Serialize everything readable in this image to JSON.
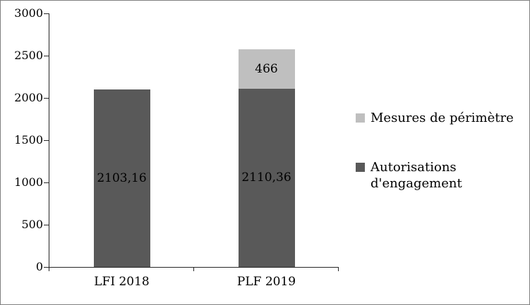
{
  "chart_data": {
    "type": "bar",
    "subtype": "stacked",
    "title": "",
    "xlabel": "",
    "ylabel": "",
    "categories": [
      "LFI 2018",
      "PLF 2019"
    ],
    "series": [
      {
        "name": "Autorisations d'engagement",
        "color": "#595959",
        "values": [
          2103.16,
          2110.36
        ],
        "labels": [
          "2103,16",
          "2110,36"
        ]
      },
      {
        "name": "Mesures de périmètre",
        "color": "#bfbfbf",
        "values": [
          0,
          466
        ],
        "labels": [
          "",
          "466"
        ]
      }
    ],
    "ylim": [
      0,
      3000
    ],
    "yticks": [
      0,
      500,
      1000,
      1500,
      2000,
      2500,
      3000
    ],
    "grid": false,
    "legend_position": "right",
    "legend": [
      {
        "label": "Mesures de périmètre",
        "color": "#bfbfbf"
      },
      {
        "label": "Autorisations d'engagement",
        "color": "#595959"
      }
    ]
  }
}
